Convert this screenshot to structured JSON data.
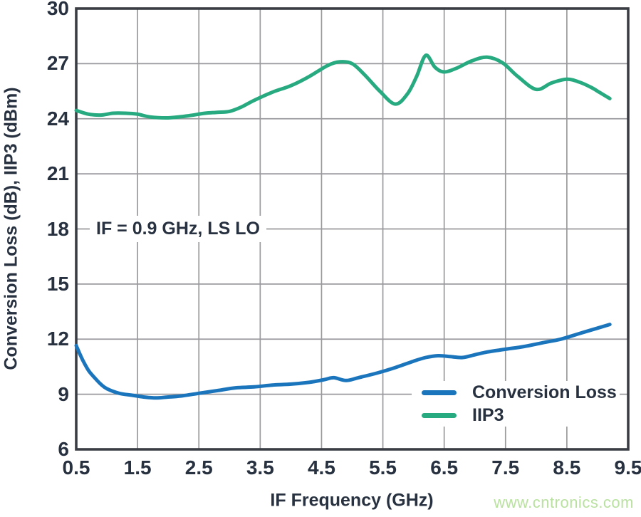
{
  "chart_data": {
    "type": "line",
    "title": "",
    "xlabel": "IF Frequency (GHz)",
    "ylabel": "Conversion Loss (dB), IIP3 (dBm)",
    "annotation": "IF = 0.9 GHz, LS LO",
    "xlim": [
      0.5,
      9.5
    ],
    "ylim": [
      6,
      30
    ],
    "grid": true,
    "legend_position": "lower right",
    "x_ticks": [
      0.5,
      1.5,
      2.5,
      3.5,
      4.5,
      5.5,
      6.5,
      7.5,
      8.5,
      9.5
    ],
    "x_tick_labels": [
      "0.5",
      "1.5",
      "2.5",
      "3.5",
      "4.5",
      "5.5",
      "6.5",
      "7.5",
      "8.5",
      "9.5"
    ],
    "y_ticks": [
      30,
      27,
      24,
      21,
      18,
      15,
      12,
      9,
      6
    ],
    "y_tick_labels": [
      "30",
      "27",
      "24",
      "21",
      "18",
      "15",
      "12",
      "9",
      "6"
    ],
    "series": [
      {
        "name": "Conversion Loss",
        "color": "#1b75bc",
        "points": [
          [
            0.5,
            11.65
          ],
          [
            0.6,
            10.9
          ],
          [
            0.7,
            10.3
          ],
          [
            0.8,
            9.9
          ],
          [
            0.9,
            9.55
          ],
          [
            1.0,
            9.3
          ],
          [
            1.2,
            9.05
          ],
          [
            1.4,
            8.95
          ],
          [
            1.6,
            8.85
          ],
          [
            1.8,
            8.8
          ],
          [
            2.0,
            8.85
          ],
          [
            2.2,
            8.9
          ],
          [
            2.5,
            9.05
          ],
          [
            2.8,
            9.2
          ],
          [
            3.1,
            9.35
          ],
          [
            3.4,
            9.4
          ],
          [
            3.7,
            9.5
          ],
          [
            4.0,
            9.55
          ],
          [
            4.3,
            9.65
          ],
          [
            4.55,
            9.8
          ],
          [
            4.7,
            9.9
          ],
          [
            4.9,
            9.75
          ],
          [
            5.1,
            9.9
          ],
          [
            5.4,
            10.15
          ],
          [
            5.7,
            10.45
          ],
          [
            6.0,
            10.8
          ],
          [
            6.2,
            11.0
          ],
          [
            6.4,
            11.1
          ],
          [
            6.6,
            11.05
          ],
          [
            6.8,
            11.0
          ],
          [
            7.0,
            11.15
          ],
          [
            7.2,
            11.3
          ],
          [
            7.5,
            11.45
          ],
          [
            7.8,
            11.6
          ],
          [
            8.1,
            11.8
          ],
          [
            8.4,
            12.0
          ],
          [
            8.7,
            12.3
          ],
          [
            9.0,
            12.6
          ],
          [
            9.2,
            12.8
          ]
        ]
      },
      {
        "name": "IIP3",
        "color": "#27aa80",
        "points": [
          [
            0.5,
            24.45
          ],
          [
            0.7,
            24.25
          ],
          [
            0.9,
            24.2
          ],
          [
            1.1,
            24.3
          ],
          [
            1.3,
            24.3
          ],
          [
            1.5,
            24.25
          ],
          [
            1.7,
            24.1
          ],
          [
            2.0,
            24.05
          ],
          [
            2.3,
            24.15
          ],
          [
            2.6,
            24.3
          ],
          [
            2.8,
            24.35
          ],
          [
            3.0,
            24.4
          ],
          [
            3.2,
            24.65
          ],
          [
            3.4,
            25.0
          ],
          [
            3.7,
            25.45
          ],
          [
            4.0,
            25.8
          ],
          [
            4.3,
            26.3
          ],
          [
            4.6,
            26.9
          ],
          [
            4.8,
            27.1
          ],
          [
            5.0,
            27.0
          ],
          [
            5.2,
            26.4
          ],
          [
            5.45,
            25.5
          ],
          [
            5.7,
            24.8
          ],
          [
            5.9,
            25.35
          ],
          [
            6.05,
            26.3
          ],
          [
            6.2,
            27.45
          ],
          [
            6.35,
            26.8
          ],
          [
            6.5,
            26.55
          ],
          [
            6.7,
            26.75
          ],
          [
            6.95,
            27.15
          ],
          [
            7.2,
            27.35
          ],
          [
            7.45,
            27.05
          ],
          [
            7.7,
            26.3
          ],
          [
            8.0,
            25.6
          ],
          [
            8.25,
            25.95
          ],
          [
            8.5,
            26.15
          ],
          [
            8.7,
            26.0
          ],
          [
            8.9,
            25.7
          ],
          [
            9.05,
            25.4
          ],
          [
            9.2,
            25.1
          ]
        ]
      }
    ]
  },
  "watermark": {
    "text": "www.cntronics.com",
    "color": "#b9e1a0"
  },
  "colors": {
    "text": "#273140",
    "grid": "#9a9a9e",
    "border": "#3a3d44",
    "background": "#ffffff"
  }
}
